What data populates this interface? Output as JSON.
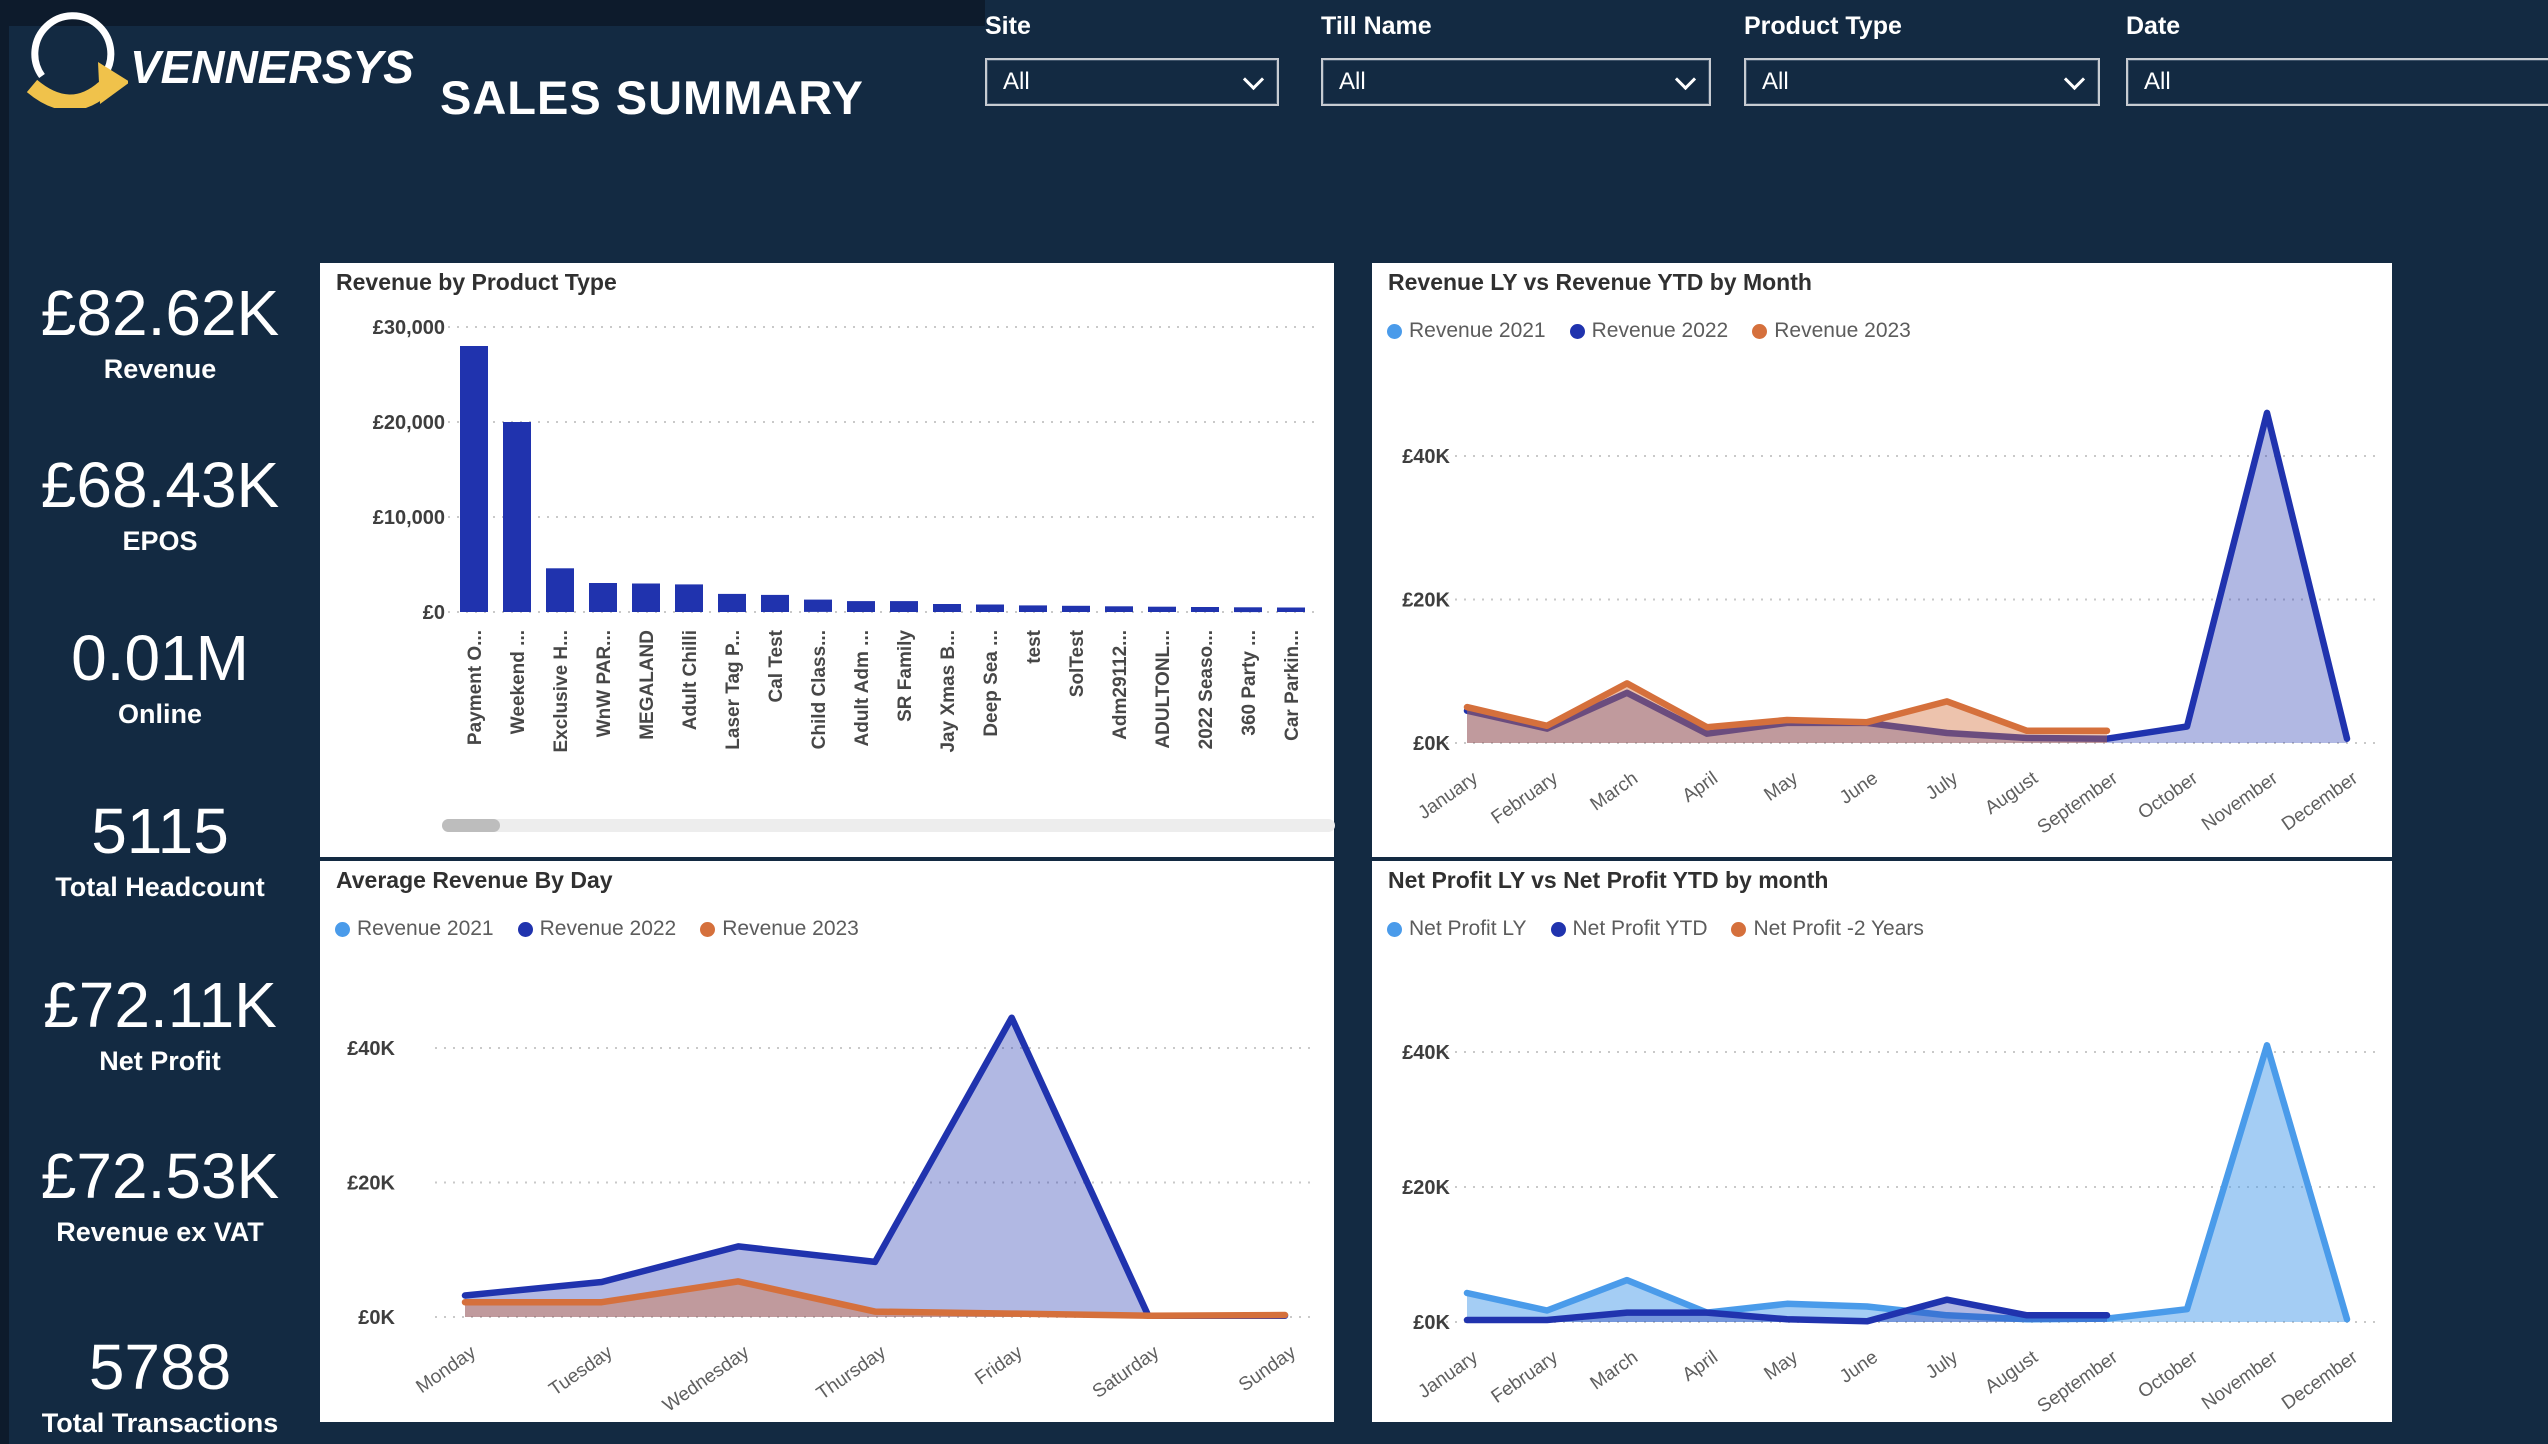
{
  "app": {
    "logo_text": "VENNERSYS",
    "title": "SALES SUMMARY"
  },
  "filters": [
    {
      "label": "Site",
      "value": "All"
    },
    {
      "label": "Till Name",
      "value": "All"
    },
    {
      "label": "Product Type",
      "value": "All"
    },
    {
      "label": "Date",
      "value": "All"
    }
  ],
  "kpis": [
    {
      "value": "£82.62K",
      "label": "Revenue"
    },
    {
      "value": "£68.43K",
      "label": "EPOS"
    },
    {
      "value": "0.01M",
      "label": "Online"
    },
    {
      "value": "5115",
      "label": "Total Headcount"
    },
    {
      "value": "£72.11K",
      "label": "Net Profit"
    },
    {
      "value": "£72.53K",
      "label": "Revenue ex VAT"
    },
    {
      "value": "5788",
      "label": "Total Transactions"
    }
  ],
  "colors": {
    "background": "#132A42",
    "card": "#FFFFFF",
    "dark_blue": "#2033AE",
    "light_blue": "#4A9BEA",
    "orange": "#D5703C",
    "logo_yellow": "#F0C24B"
  },
  "chart_data": [
    {
      "type": "bar",
      "title": "Revenue by Product Type",
      "categories": [
        "Payment O...",
        "Weekend ...",
        "Exclusive H...",
        "WnW PAR...",
        "MEGALAND",
        "Adult Chilli",
        "Laser Tag P...",
        "Cal Test",
        "Child Class...",
        "Adult Adm ...",
        "SR Family",
        "Jay Xmas B...",
        "Deep Sea ...",
        "test",
        "SolTest",
        "Adm29112...",
        "ADULTONL...",
        "2022 Seaso...",
        "360 Party ...",
        "Car Parkin..."
      ],
      "values": [
        28000,
        20000,
        4600,
        3050,
        3000,
        2900,
        1900,
        1800,
        1300,
        1150,
        1150,
        840,
        790,
        700,
        650,
        600,
        560,
        530,
        500,
        470
      ],
      "yticks": [
        {
          "label": "£0",
          "v": 0
        },
        {
          "label": "£10,000",
          "v": 10000
        },
        {
          "label": "£20,000",
          "v": 20000
        },
        {
          "label": "£30,000",
          "v": 30000
        }
      ],
      "ylim": [
        0,
        30000
      ],
      "bar_color": "#2033AE",
      "has_scrollbar": true
    },
    {
      "type": "area",
      "title": "Revenue LY vs Revenue YTD by Month",
      "categories": [
        "January",
        "February",
        "March",
        "April",
        "May",
        "June",
        "July",
        "August",
        "September",
        "October",
        "November",
        "December"
      ],
      "legend": [
        {
          "name": "Revenue 2021",
          "color": "#4A9BEA"
        },
        {
          "name": "Revenue 2022",
          "color": "#2033AE"
        },
        {
          "name": "Revenue 2023",
          "color": "#D5703C"
        }
      ],
      "series": [
        {
          "name": "Revenue 2021",
          "color": "#4A9BEA",
          "fill_opacity": 0.55,
          "values": []
        },
        {
          "name": "Revenue 2022",
          "color": "#2033AE",
          "fill_opacity": 0.35,
          "values": [
            4.5,
            2.0,
            7.0,
            1.3,
            2.8,
            2.8,
            1.4,
            0.7,
            0.6,
            2.3,
            46,
            0.6
          ]
        },
        {
          "name": "Revenue 2023",
          "color": "#D5703C",
          "fill_opacity": 0.42,
          "values": [
            5.0,
            2.4,
            8.3,
            2.2,
            3.2,
            2.9,
            5.8,
            1.7,
            1.7
          ]
        }
      ],
      "yticks": [
        {
          "label": "£0K",
          "v": 0
        },
        {
          "label": "£20K",
          "v": 20
        },
        {
          "label": "£40K",
          "v": 40
        }
      ],
      "ylim": [
        0,
        48
      ],
      "unit": "thousands GBP"
    },
    {
      "type": "area",
      "title": "Average Revenue By Day",
      "categories": [
        "Monday",
        "Tuesday",
        "Wednesday",
        "Thursday",
        "Friday",
        "Saturday",
        "Sunday"
      ],
      "legend": [
        {
          "name": "Revenue 2021",
          "color": "#4A9BEA"
        },
        {
          "name": "Revenue 2022",
          "color": "#2033AE"
        },
        {
          "name": "Revenue 2023",
          "color": "#D5703C"
        }
      ],
      "series": [
        {
          "name": "Revenue 2021",
          "color": "#4A9BEA",
          "fill_opacity": 0.55,
          "values": []
        },
        {
          "name": "Revenue 2022",
          "color": "#2033AE",
          "fill_opacity": 0.35,
          "values": [
            3.2,
            5.2,
            10.5,
            8.2,
            44.5,
            0.2,
            0.2
          ]
        },
        {
          "name": "Revenue 2023",
          "color": "#D5703C",
          "fill_opacity": 0.42,
          "values": [
            2.2,
            2.2,
            5.3,
            0.8,
            0.5,
            0.2,
            0.3
          ]
        }
      ],
      "yticks": [
        {
          "label": "£0K",
          "v": 0
        },
        {
          "label": "£20K",
          "v": 20
        },
        {
          "label": "£40K",
          "v": 40
        }
      ],
      "ylim": [
        0,
        48
      ],
      "unit": "thousands GBP"
    },
    {
      "type": "area",
      "title": "Net Profit LY vs Net Profit YTD by month",
      "categories": [
        "January",
        "February",
        "March",
        "April",
        "May",
        "June",
        "July",
        "August",
        "September",
        "October",
        "November",
        "December"
      ],
      "legend": [
        {
          "name": "Net Profit LY",
          "color": "#4A9BEA"
        },
        {
          "name": "Net Profit YTD",
          "color": "#2033AE"
        },
        {
          "name": "Net Profit -2 Years",
          "color": "#D5703C"
        }
      ],
      "series": [
        {
          "name": "Net Profit LY",
          "color": "#4A9BEA",
          "fill_opacity": 0.5,
          "values": [
            4.3,
            1.7,
            6.2,
            1.4,
            2.7,
            2.3,
            1.0,
            0.4,
            0.5,
            1.9,
            41,
            0.4
          ]
        },
        {
          "name": "Net Profit YTD",
          "color": "#2033AE",
          "fill_opacity": 0.35,
          "values": [
            0.3,
            0.3,
            1.4,
            1.4,
            0.4,
            0.1,
            3.3,
            1.0,
            1.0
          ]
        },
        {
          "name": "Net Profit -2 Years",
          "color": "#D5703C",
          "fill_opacity": 0.42,
          "values": []
        }
      ],
      "yticks": [
        {
          "label": "£0K",
          "v": 0
        },
        {
          "label": "£20K",
          "v": 20
        },
        {
          "label": "£40K",
          "v": 40
        }
      ],
      "ylim": [
        0,
        46
      ],
      "unit": "thousands GBP"
    }
  ]
}
